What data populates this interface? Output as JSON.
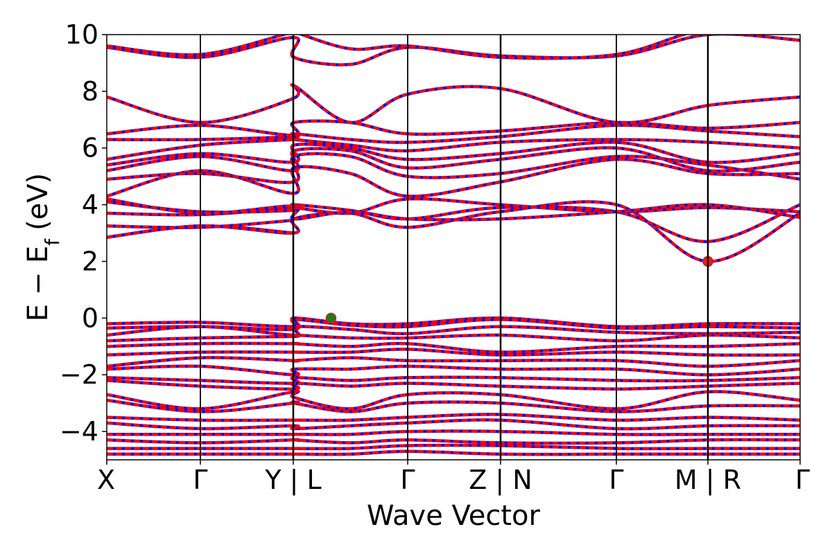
{
  "chart_data": {
    "type": "line",
    "title": "",
    "xlabel": "Wave Vector",
    "ylabel": "E − E",
    "ylabel_subscript": "f",
    "ylabel_unit": "(eV)",
    "ylim": [
      -5,
      10
    ],
    "yticks": [
      -4,
      -2,
      0,
      2,
      4,
      6,
      8,
      10
    ],
    "ytick_labels": [
      "−4",
      "−2",
      "0",
      "2",
      "4",
      "6",
      "8",
      "10"
    ],
    "x_segments": [
      1.0,
      1.0,
      1.2,
      1.24,
      1.22,
      1.22,
      0.98,
      1.0
    ],
    "xticks": [
      {
        "label": "X",
        "index": 0
      },
      {
        "label": "Γ",
        "index": 1
      },
      {
        "label": "Y | L",
        "index": 2
      },
      {
        "label": "Γ",
        "index": 3
      },
      {
        "label": "Z | N",
        "index": 4
      },
      {
        "label": "Γ",
        "index": 5
      },
      {
        "label": "M | R",
        "index": 6
      },
      {
        "label": "Γ",
        "index": 7
      }
    ],
    "high_symmetry_lines": [
      1,
      2,
      3,
      4,
      5,
      6
    ],
    "markers": [
      {
        "name": "VBM",
        "segment": 2,
        "frac": 0.33,
        "energy": 0.0,
        "color": "#1a7f1a"
      },
      {
        "name": "CBM",
        "segment": 6,
        "frac": 0.0,
        "energy": 2.0,
        "color": "#e02020"
      }
    ],
    "colors": {
      "band_primary": "#ff0000",
      "band_secondary": "#1010e0",
      "frame": "#000000"
    },
    "conduction_bands": [
      [
        2.85,
        3.25,
        3.0
      ],
      [
        3.25,
        3.2,
        3.45
      ],
      [
        2.85,
        3.25,
        3.0,
        3.5,
        3.7,
        3.2,
        3.75,
        4.0,
        2.0,
        3.7
      ],
      [
        3.7,
        3.65,
        3.9,
        4.0,
        3.8,
        3.5,
        3.9,
        3.75,
        2.7,
        4.0
      ],
      [
        4.1,
        3.75,
        3.8,
        3.9,
        3.7,
        4.2,
        4.0,
        3.75,
        3.9,
        3.75
      ],
      [
        4.2,
        3.7,
        3.95,
        3.5,
        3.75,
        3.5,
        3.5,
        3.75,
        4.0,
        3.55
      ],
      [
        4.3,
        5.2,
        4.4,
        5.3,
        5.1,
        4.3,
        4.8,
        5.6,
        5.1,
        5.1
      ],
      [
        4.9,
        5.1,
        4.8,
        5.7,
        5.7,
        5.0,
        5.1,
        5.7,
        5.4,
        4.9
      ],
      [
        5.2,
        5.7,
        5.2,
        5.9,
        5.9,
        5.3,
        5.6,
        6.0,
        5.2,
        5.5
      ],
      [
        5.4,
        5.8,
        5.5,
        6.1,
        6.0,
        5.6,
        5.8,
        6.2,
        5.5,
        5.8
      ],
      [
        5.6,
        6.1,
        6.3,
        6.3,
        6.1,
        5.9,
        6.2,
        6.3,
        6.2,
        6.0
      ],
      [
        6.3,
        6.3,
        6.4,
        6.5,
        6.3,
        6.2,
        6.4,
        6.8,
        6.6,
        6.4
      ],
      [
        6.5,
        6.8,
        6.45,
        6.9,
        6.9,
        6.5,
        6.6,
        6.9,
        6.7,
        6.9
      ],
      [
        7.8,
        6.9,
        7.75,
        8.2,
        6.9,
        7.9,
        8.1,
        6.9,
        7.5,
        7.8
      ],
      [
        9.55,
        9.2,
        9.9,
        9.2,
        8.95,
        9.55,
        9.25,
        9.25,
        10.0,
        9.8
      ],
      [
        9.6,
        9.3,
        10.1,
        10.1,
        9.5,
        9.6,
        9.2,
        9.3,
        10.2,
        10.1
      ]
    ],
    "valence_bands": [
      [
        -0.2,
        -0.15,
        -0.3,
        0.0,
        -0.2,
        -0.2,
        0.0,
        -0.3,
        -0.2,
        -0.2
      ],
      [
        -0.35,
        -0.3,
        -0.4,
        -0.05,
        -0.25,
        -0.3,
        -0.05,
        -0.35,
        -0.3,
        -0.35
      ],
      [
        -0.6,
        -0.3,
        -0.6,
        -0.3,
        -0.4,
        -0.55,
        -0.3,
        -0.5,
        -0.55,
        -0.5
      ],
      [
        -0.8,
        -0.7,
        -0.65,
        -0.6,
        -0.7,
        -0.7,
        -0.6,
        -0.8,
        -0.6,
        -0.7
      ],
      [
        -1.0,
        -0.9,
        -0.9,
        -0.9,
        -1.0,
        -0.9,
        -1.2,
        -1.0,
        -1.0,
        -0.9
      ],
      [
        -1.3,
        -1.2,
        -1.2,
        -1.2,
        -1.2,
        -1.1,
        -1.3,
        -1.2,
        -1.3,
        -1.3
      ],
      [
        -1.7,
        -1.4,
        -1.5,
        -1.5,
        -1.4,
        -1.5,
        -1.5,
        -1.5,
        -1.7,
        -1.5
      ],
      [
        -1.8,
        -1.7,
        -2.0,
        -1.8,
        -1.8,
        -1.7,
        -1.8,
        -1.8,
        -2.0,
        -1.8
      ],
      [
        -2.1,
        -2.2,
        -2.3,
        -2.1,
        -2.2,
        -2.1,
        -2.1,
        -2.2,
        -2.2,
        -2.1
      ],
      [
        -2.2,
        -2.4,
        -2.5,
        -2.3,
        -2.4,
        -2.3,
        -2.4,
        -2.5,
        -2.4,
        -2.3
      ],
      [
        -2.7,
        -3.2,
        -2.6,
        -2.8,
        -3.2,
        -2.7,
        -2.7,
        -3.2,
        -2.6,
        -2.9
      ],
      [
        -2.9,
        -3.3,
        -3.0,
        -3.0,
        -3.3,
        -3.0,
        -3.0,
        -3.3,
        -3.1,
        -3.1
      ],
      [
        -3.5,
        -3.6,
        -3.6,
        -3.6,
        -3.6,
        -3.5,
        -3.4,
        -3.6,
        -3.5,
        -3.6
      ],
      [
        -3.7,
        -3.9,
        -3.8,
        -3.9,
        -3.8,
        -3.7,
        -3.6,
        -3.9,
        -3.8,
        -3.8
      ],
      [
        -4.1,
        -4.1,
        -4.1,
        -4.1,
        -4.1,
        -4.0,
        -4.0,
        -4.1,
        -4.1,
        -4.1
      ],
      [
        -4.3,
        -4.4,
        -4.3,
        -4.3,
        -4.4,
        -4.3,
        -4.4,
        -4.4,
        -4.3,
        -4.3
      ],
      [
        -4.6,
        -4.6,
        -4.6,
        -4.6,
        -4.6,
        -4.5,
        -4.5,
        -4.6,
        -4.6,
        -4.6
      ],
      [
        -4.8,
        -4.8,
        -4.8,
        -4.8,
        -4.8,
        -4.7,
        -4.8,
        -4.8,
        -4.8,
        -4.8
      ]
    ]
  }
}
